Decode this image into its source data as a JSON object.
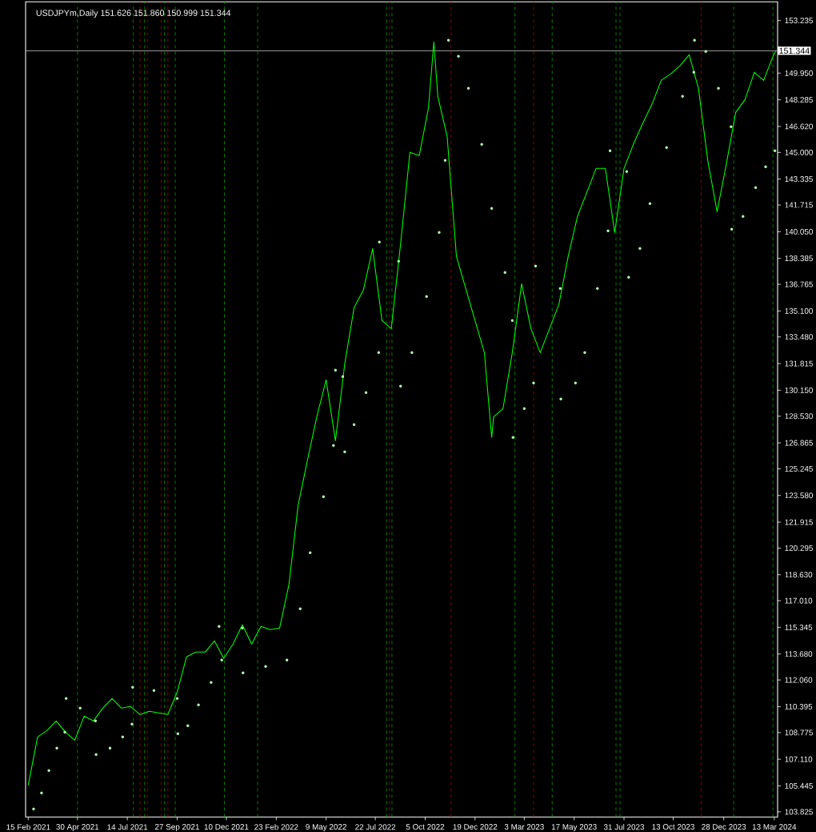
{
  "chart_data": {
    "type": "line",
    "title": "USDJPYm,Daily  151.626 151.860 150.999 151.344",
    "xlim": [
      "2021-02-11",
      "2024-03-18"
    ],
    "xticks": [
      {
        "value": "2021-02-15",
        "label": "15 Feb 2021"
      },
      {
        "value": "2021-04-30",
        "label": "30 Apr 2021"
      },
      {
        "value": "2021-07-14",
        "label": "14 Jul 2021"
      },
      {
        "value": "2021-09-27",
        "label": "27 Sep 2021"
      },
      {
        "value": "2021-12-10",
        "label": "10 Dec 2021"
      },
      {
        "value": "2022-02-23",
        "label": "23 Feb 2022"
      },
      {
        "value": "2022-05-09",
        "label": "9 May 2022"
      },
      {
        "value": "2022-07-22",
        "label": "22 Jul 2022"
      },
      {
        "value": "2022-10-05",
        "label": "5 Oct 2022"
      },
      {
        "value": "2022-12-19",
        "label": "19 Dec 2022"
      },
      {
        "value": "2023-03-03",
        "label": "3 Mar 2023"
      },
      {
        "value": "2023-05-17",
        "label": "17 May 2023"
      },
      {
        "value": "2023-07-31",
        "label": "31 Jul 2023"
      },
      {
        "value": "2023-10-13",
        "label": "13 Oct 2023"
      },
      {
        "value": "2023-12-28",
        "label": "28 Dec 2023"
      },
      {
        "value": "2024-03-13",
        "label": "13 Mar 2024"
      }
    ],
    "ylim": [
      103.5,
      154.4
    ],
    "yticks": [
      {
        "value": 103.825,
        "label": "103.825"
      },
      {
        "value": 105.445,
        "label": "105.445"
      },
      {
        "value": 107.11,
        "label": "107.110"
      },
      {
        "value": 108.775,
        "label": "108.775"
      },
      {
        "value": 110.395,
        "label": "110.395"
      },
      {
        "value": 112.06,
        "label": "112.060"
      },
      {
        "value": 113.68,
        "label": "113.680"
      },
      {
        "value": 115.345,
        "label": "115.345"
      },
      {
        "value": 117.01,
        "label": "117.010"
      },
      {
        "value": 118.63,
        "label": "118.630"
      },
      {
        "value": 120.295,
        "label": "120.295"
      },
      {
        "value": 121.915,
        "label": "121.915"
      },
      {
        "value": 123.58,
        "label": "123.580"
      },
      {
        "value": 125.245,
        "label": "125.245"
      },
      {
        "value": 126.865,
        "label": "126.865"
      },
      {
        "value": 128.53,
        "label": "128.530"
      },
      {
        "value": 130.15,
        "label": "130.150"
      },
      {
        "value": 131.815,
        "label": "131.815"
      },
      {
        "value": 133.48,
        "label": "133.480"
      },
      {
        "value": 135.1,
        "label": "135.100"
      },
      {
        "value": 136.765,
        "label": "136.765"
      },
      {
        "value": 138.385,
        "label": "138.385"
      },
      {
        "value": 140.05,
        "label": "140.050"
      },
      {
        "value": 141.715,
        "label": "141.715"
      },
      {
        "value": 143.335,
        "label": "143.335"
      },
      {
        "value": 145.0,
        "label": "145.000"
      },
      {
        "value": 146.62,
        "label": "146.620"
      },
      {
        "value": 148.285,
        "label": "148.285"
      },
      {
        "value": 149.95,
        "label": "149.950"
      },
      {
        "value": 151.57,
        "label": null
      },
      {
        "value": 153.235,
        "label": "153.235"
      }
    ],
    "series": [
      {
        "color": "#00ff00",
        "x": [
          "2021-02-15",
          "2021-03-01",
          "2021-03-15",
          "2021-03-29",
          "2021-04-12",
          "2021-04-26",
          "2021-05-10",
          "2021-05-24",
          "2021-06-07",
          "2021-06-21",
          "2021-07-05",
          "2021-07-19",
          "2021-08-02",
          "2021-08-16",
          "2021-08-30",
          "2021-09-13",
          "2021-09-27",
          "2021-10-11",
          "2021-10-25",
          "2021-11-08",
          "2021-11-22",
          "2021-12-06",
          "2021-12-20",
          "2022-01-03",
          "2022-01-17",
          "2022-01-31",
          "2022-02-14",
          "2022-02-28",
          "2022-03-14",
          "2022-03-28",
          "2022-04-11",
          "2022-04-25",
          "2022-05-09",
          "2022-05-23",
          "2022-06-06",
          "2022-06-20",
          "2022-07-04",
          "2022-07-18",
          "2022-08-01",
          "2022-08-15",
          "2022-08-29",
          "2022-09-12",
          "2022-09-26",
          "2022-10-10",
          "2022-10-18",
          "2022-10-24",
          "2022-11-07",
          "2022-11-21",
          "2022-12-05",
          "2022-12-19",
          "2023-01-02",
          "2023-01-13",
          "2023-01-16",
          "2023-01-30",
          "2023-02-13",
          "2023-02-27",
          "2023-03-13",
          "2023-03-27",
          "2023-04-10",
          "2023-04-24",
          "2023-05-08",
          "2023-05-22",
          "2023-06-05",
          "2023-06-19",
          "2023-07-03",
          "2023-07-17",
          "2023-07-31",
          "2023-08-14",
          "2023-08-28",
          "2023-09-11",
          "2023-09-25",
          "2023-10-09",
          "2023-10-23",
          "2023-11-06",
          "2023-11-20",
          "2023-12-04",
          "2023-12-18",
          "2024-01-01",
          "2024-01-15",
          "2024-01-29",
          "2024-02-12",
          "2024-02-26",
          "2024-03-11",
          "2024-03-15"
        ],
        "values": [
          105.5,
          108.5,
          108.9,
          109.5,
          108.8,
          108.3,
          109.8,
          109.5,
          110.3,
          110.9,
          110.3,
          110.4,
          109.9,
          110.1,
          110.0,
          109.9,
          111.3,
          113.5,
          113.8,
          113.8,
          114.5,
          113.4,
          114.3,
          115.5,
          114.3,
          115.4,
          115.2,
          115.3,
          118.0,
          123.0,
          125.8,
          128.5,
          130.8,
          127.0,
          131.8,
          135.3,
          136.4,
          139.0,
          134.5,
          134.0,
          139.3,
          145.0,
          144.8,
          147.8,
          151.9,
          148.5,
          146.0,
          138.5,
          136.5,
          134.5,
          132.5,
          127.2,
          128.5,
          129.0,
          132.5,
          136.8,
          134.0,
          132.5,
          134.0,
          135.5,
          138.5,
          141.0,
          142.5,
          144.0,
          144.0,
          140.0,
          144.0,
          145.5,
          146.8,
          148.0,
          149.5,
          149.9,
          150.4,
          151.1,
          149.0,
          144.5,
          141.3,
          144.3,
          147.5,
          148.3,
          150.0,
          149.5,
          151.0,
          151.3
        ]
      },
      {
        "type": "scatter",
        "color": "#b0ffb0",
        "marker": "circle",
        "x": [
          "2021-02-23",
          "2021-03-07",
          "2021-03-18",
          "2021-03-30",
          "2021-04-11",
          "2021-04-13",
          "2021-05-04",
          "2021-05-27",
          "2021-05-28",
          "2021-06-18",
          "2021-07-07",
          "2021-07-21",
          "2021-07-22",
          "2021-08-23",
          "2021-09-27",
          "2021-09-28",
          "2021-10-13",
          "2021-10-29",
          "2021-11-17",
          "2021-11-29",
          "2021-12-03",
          "2022-01-03",
          "2022-01-04",
          "2022-02-07",
          "2022-03-11",
          "2022-03-31",
          "2022-04-15",
          "2022-05-05",
          "2022-05-20",
          "2022-05-23",
          "2022-06-03",
          "2022-06-06",
          "2022-06-20",
          "2022-07-08",
          "2022-07-27",
          "2022-07-28",
          "2022-08-26",
          "2022-08-29",
          "2022-09-15",
          "2022-10-07",
          "2022-10-26",
          "2022-11-04",
          "2022-11-09",
          "2022-11-24",
          "2022-12-09",
          "2022-12-29",
          "2023-01-13",
          "2023-02-02",
          "2023-02-13",
          "2023-02-14",
          "2023-03-03",
          "2023-03-17",
          "2023-03-20",
          "2023-04-26",
          "2023-04-27",
          "2023-05-19",
          "2023-06-02",
          "2023-06-21",
          "2023-07-07",
          "2023-07-10",
          "2023-08-04",
          "2023-08-07",
          "2023-08-24",
          "2023-09-08",
          "2023-10-03",
          "2023-10-27",
          "2023-11-13",
          "2023-11-14",
          "2023-12-01",
          "2023-12-20",
          "2024-01-08",
          "2024-01-09",
          "2024-01-26",
          "2024-02-14",
          "2024-02-29",
          "2024-03-14"
        ],
        "values": [
          104.0,
          105.0,
          106.4,
          107.8,
          108.8,
          110.9,
          110.3,
          109.5,
          107.4,
          107.8,
          108.5,
          109.3,
          111.6,
          111.4,
          110.9,
          108.7,
          109.2,
          110.5,
          111.9,
          115.4,
          113.3,
          115.3,
          112.5,
          112.9,
          113.3,
          116.5,
          120.0,
          123.5,
          126.7,
          131.4,
          131.0,
          126.3,
          128.0,
          130.0,
          132.5,
          139.4,
          138.2,
          130.4,
          132.5,
          136.0,
          140.0,
          144.5,
          152.0,
          151.0,
          149.0,
          145.5,
          141.5,
          137.5,
          134.5,
          127.2,
          129.0,
          130.6,
          137.9,
          136.5,
          129.6,
          130.6,
          132.5,
          136.5,
          140.1,
          145.1,
          143.8,
          137.2,
          139.0,
          141.8,
          145.3,
          148.5,
          150.0,
          152.0,
          151.3,
          149.0,
          146.6,
          140.2,
          141.0,
          142.8,
          144.1,
          145.1
        ]
      }
    ],
    "ref_lines": [
      {
        "axis": "x",
        "value": "2021-04-30",
        "color": "#00a000",
        "line_style": "dashed"
      },
      {
        "axis": "x",
        "value": "2021-07-23",
        "color": "#00a000",
        "line_style": "dashed"
      },
      {
        "axis": "x",
        "value": "2021-08-02",
        "color": "#b00000",
        "line_style": "dashed"
      },
      {
        "axis": "x",
        "value": "2021-08-09",
        "color": "#00a000",
        "line_style": "dashed"
      },
      {
        "axis": "x",
        "value": "2021-08-13",
        "color": "#b00000",
        "line_style": "dashed"
      },
      {
        "axis": "x",
        "value": "2021-09-03",
        "color": "#b00000",
        "line_style": "dashed"
      },
      {
        "axis": "x",
        "value": "2021-09-08",
        "color": "#00a000",
        "line_style": "dashed"
      },
      {
        "axis": "x",
        "value": "2021-09-13",
        "color": "#b00000",
        "line_style": "dashed"
      },
      {
        "axis": "x",
        "value": "2021-09-24",
        "color": "#00a000",
        "line_style": "dashed"
      },
      {
        "axis": "x",
        "value": "2021-12-07",
        "color": "#00a000",
        "line_style": "dashed"
      },
      {
        "axis": "x",
        "value": "2022-01-26",
        "color": "#00a000",
        "line_style": "dashed"
      },
      {
        "axis": "x",
        "value": "2022-08-08",
        "color": "#00a000",
        "line_style": "dashed"
      },
      {
        "axis": "x",
        "value": "2022-08-12",
        "color": "#b00000",
        "line_style": "dashed"
      },
      {
        "axis": "x",
        "value": "2022-08-16",
        "color": "#00a000",
        "line_style": "dashed"
      },
      {
        "axis": "x",
        "value": "2022-11-13",
        "color": "#b00000",
        "line_style": "dashed"
      },
      {
        "axis": "x",
        "value": "2023-02-17",
        "color": "#00a000",
        "line_style": "dashed"
      },
      {
        "axis": "x",
        "value": "2023-03-17",
        "color": "#b00000",
        "line_style": "dashed"
      },
      {
        "axis": "x",
        "value": "2023-04-14",
        "color": "#00a000",
        "line_style": "dashed"
      },
      {
        "axis": "x",
        "value": "2023-07-19",
        "color": "#00a000",
        "line_style": "dashed"
      },
      {
        "axis": "x",
        "value": "2023-07-25",
        "color": "#00a000",
        "line_style": "dashed"
      },
      {
        "axis": "x",
        "value": "2023-11-24",
        "color": "#b00000",
        "line_style": "dashed"
      },
      {
        "axis": "x",
        "value": "2024-01-12",
        "color": "#00a000",
        "line_style": "dashed"
      },
      {
        "axis": "x",
        "value": "2024-03-11",
        "color": "#00a000",
        "line_style": "dashed"
      },
      {
        "axis": "y",
        "value": 151.344,
        "label": "151.344",
        "color": "#c0c0c0",
        "line_style": "solid"
      }
    ]
  }
}
